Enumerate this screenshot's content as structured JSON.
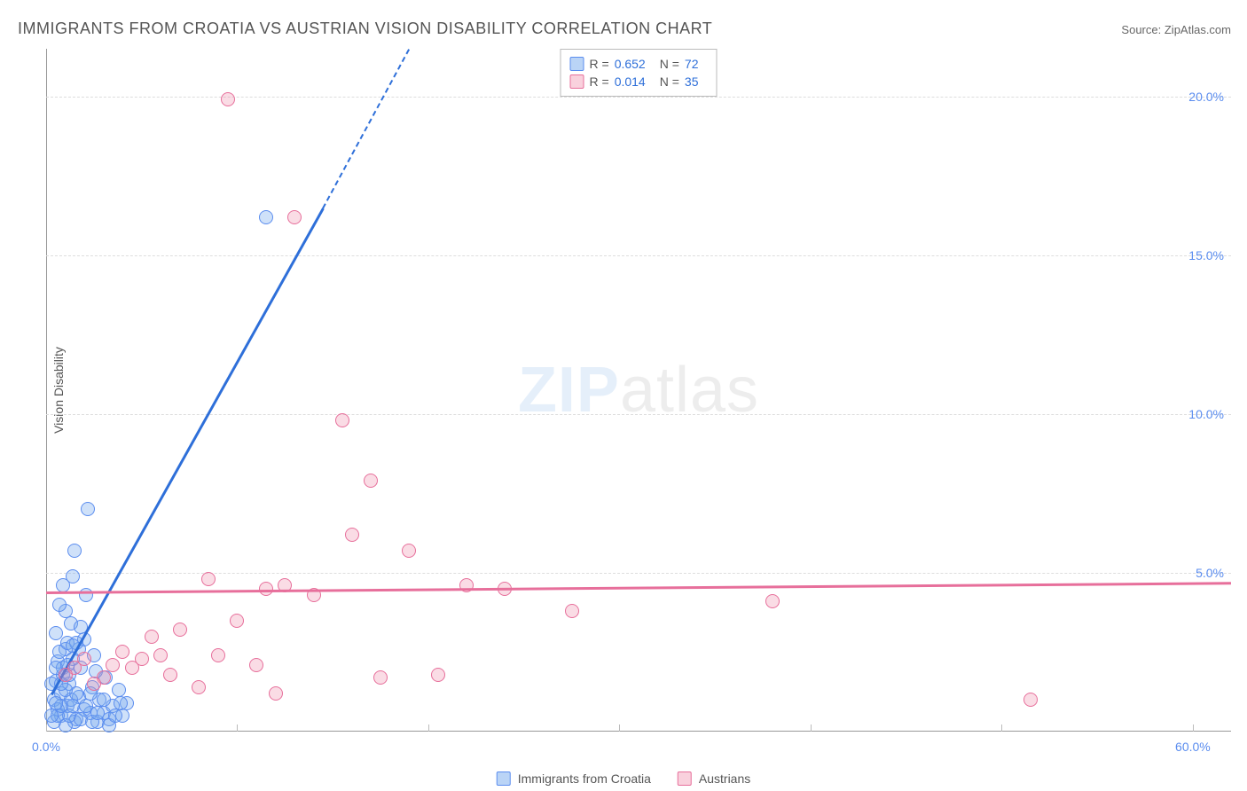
{
  "title": "IMMIGRANTS FROM CROATIA VS AUSTRIAN VISION DISABILITY CORRELATION CHART",
  "source_label": "Source:",
  "source_name": "ZipAtlas.com",
  "watermark_zip": "ZIP",
  "watermark_atlas": "atlas",
  "y_axis_label": "Vision Disability",
  "chart": {
    "type": "scatter",
    "xlim": [
      0,
      62
    ],
    "ylim": [
      0,
      21.5
    ],
    "x_ticks": [
      0,
      10,
      20,
      30,
      40,
      50,
      60
    ],
    "x_tick_labels": [
      "0.0%",
      "",
      "",
      "",
      "",
      "",
      "60.0%"
    ],
    "y_ticks": [
      5,
      10,
      15,
      20
    ],
    "y_tick_labels": [
      "5.0%",
      "10.0%",
      "15.0%",
      "20.0%"
    ],
    "grid_color": "#dddddd",
    "background_color": "#ffffff",
    "point_radius": 8,
    "series": [
      {
        "name": "Immigrants from Croatia",
        "color_fill": "rgba(118,169,238,0.35)",
        "color_stroke": "#5b8def",
        "class": "blue",
        "R": "0.652",
        "N": "72",
        "trend": {
          "x1": 0.3,
          "y1": 1.2,
          "x2": 14.5,
          "y2": 16.5,
          "dash_to_x": 19,
          "dash_to_y": 21.5
        },
        "points": [
          [
            0.4,
            1.0
          ],
          [
            0.5,
            1.6
          ],
          [
            0.6,
            2.2
          ],
          [
            0.8,
            0.5
          ],
          [
            0.9,
            1.8
          ],
          [
            1.0,
            2.6
          ],
          [
            1.1,
            0.8
          ],
          [
            1.2,
            1.5
          ],
          [
            1.3,
            3.4
          ],
          [
            1.4,
            4.9
          ],
          [
            1.5,
            5.7
          ],
          [
            1.6,
            0.4
          ],
          [
            1.7,
            1.1
          ],
          [
            1.8,
            2.0
          ],
          [
            2.0,
            2.9
          ],
          [
            2.1,
            4.3
          ],
          [
            2.2,
            7.0
          ],
          [
            2.3,
            0.6
          ],
          [
            2.4,
            1.4
          ],
          [
            2.5,
            2.4
          ],
          [
            2.7,
            0.3
          ],
          [
            2.8,
            1.0
          ],
          [
            3.0,
            0.6
          ],
          [
            3.1,
            1.7
          ],
          [
            3.3,
            0.4
          ],
          [
            3.5,
            0.8
          ],
          [
            3.8,
            1.3
          ],
          [
            4.0,
            0.5
          ],
          [
            4.2,
            0.9
          ],
          [
            0.5,
            3.1
          ],
          [
            0.7,
            2.5
          ],
          [
            1.0,
            3.8
          ],
          [
            0.6,
            0.7
          ],
          [
            0.8,
            1.2
          ],
          [
            0.9,
            2.0
          ],
          [
            1.1,
            2.8
          ],
          [
            1.3,
            1.0
          ],
          [
            1.5,
            0.3
          ],
          [
            1.7,
            2.6
          ],
          [
            2.0,
            0.7
          ],
          [
            2.3,
            1.2
          ],
          [
            2.6,
            1.9
          ],
          [
            1.0,
            0.2
          ],
          [
            1.2,
            0.5
          ],
          [
            1.4,
            0.8
          ],
          [
            1.6,
            1.2
          ],
          [
            1.8,
            0.4
          ],
          [
            2.1,
            0.8
          ],
          [
            2.4,
            0.3
          ],
          [
            2.7,
            0.6
          ],
          [
            3.0,
            1.0
          ],
          [
            3.3,
            0.2
          ],
          [
            3.6,
            0.5
          ],
          [
            3.9,
            0.9
          ],
          [
            0.4,
            0.3
          ],
          [
            0.6,
            0.5
          ],
          [
            0.8,
            0.8
          ],
          [
            1.0,
            1.3
          ],
          [
            1.2,
            1.8
          ],
          [
            1.4,
            2.3
          ],
          [
            1.6,
            2.8
          ],
          [
            1.8,
            3.3
          ],
          [
            0.3,
            1.5
          ],
          [
            0.5,
            2.0
          ],
          [
            0.7,
            4.0
          ],
          [
            0.9,
            4.6
          ],
          [
            11.5,
            16.2
          ],
          [
            0.3,
            0.5
          ],
          [
            0.5,
            0.9
          ],
          [
            0.8,
            1.5
          ],
          [
            1.1,
            2.1
          ],
          [
            1.4,
            2.7
          ]
        ]
      },
      {
        "name": "Austrians",
        "color_fill": "rgba(240,140,170,0.3)",
        "color_stroke": "#e76f9b",
        "class": "pink",
        "R": "0.014",
        "N": "35",
        "trend": {
          "x1": 0,
          "y1": 4.4,
          "x2": 62,
          "y2": 4.7
        },
        "points": [
          [
            1.5,
            2.0
          ],
          [
            2.0,
            2.3
          ],
          [
            3.0,
            1.7
          ],
          [
            3.5,
            2.1
          ],
          [
            4.0,
            2.5
          ],
          [
            4.5,
            2.0
          ],
          [
            5.0,
            2.3
          ],
          [
            5.5,
            3.0
          ],
          [
            6.0,
            2.4
          ],
          [
            7.0,
            3.2
          ],
          [
            8.0,
            1.4
          ],
          [
            8.5,
            4.8
          ],
          [
            9.0,
            2.4
          ],
          [
            9.5,
            19.9
          ],
          [
            10.0,
            3.5
          ],
          [
            11.0,
            2.1
          ],
          [
            11.5,
            4.5
          ],
          [
            12.0,
            1.2
          ],
          [
            12.5,
            4.6
          ],
          [
            13.0,
            16.2
          ],
          [
            14.0,
            4.3
          ],
          [
            15.5,
            9.8
          ],
          [
            16.0,
            6.2
          ],
          [
            17.0,
            7.9
          ],
          [
            17.5,
            1.7
          ],
          [
            19.0,
            5.7
          ],
          [
            20.5,
            1.8
          ],
          [
            22.0,
            4.6
          ],
          [
            24.0,
            4.5
          ],
          [
            27.5,
            3.8
          ],
          [
            38.0,
            4.1
          ],
          [
            51.5,
            1.0
          ],
          [
            1.0,
            1.8
          ],
          [
            2.5,
            1.5
          ],
          [
            6.5,
            1.8
          ]
        ]
      }
    ]
  },
  "legend_box": {
    "rows": [
      {
        "class": "blue",
        "r_label": "R =",
        "r_val": "0.652",
        "n_label": "N =",
        "n_val": "72"
      },
      {
        "class": "pink",
        "r_label": "R =",
        "r_val": "0.014",
        "n_label": "N =",
        "n_val": "35"
      }
    ]
  },
  "bottom_legend": [
    {
      "class": "blue",
      "label": "Immigrants from Croatia"
    },
    {
      "class": "pink",
      "label": "Austrians"
    }
  ]
}
